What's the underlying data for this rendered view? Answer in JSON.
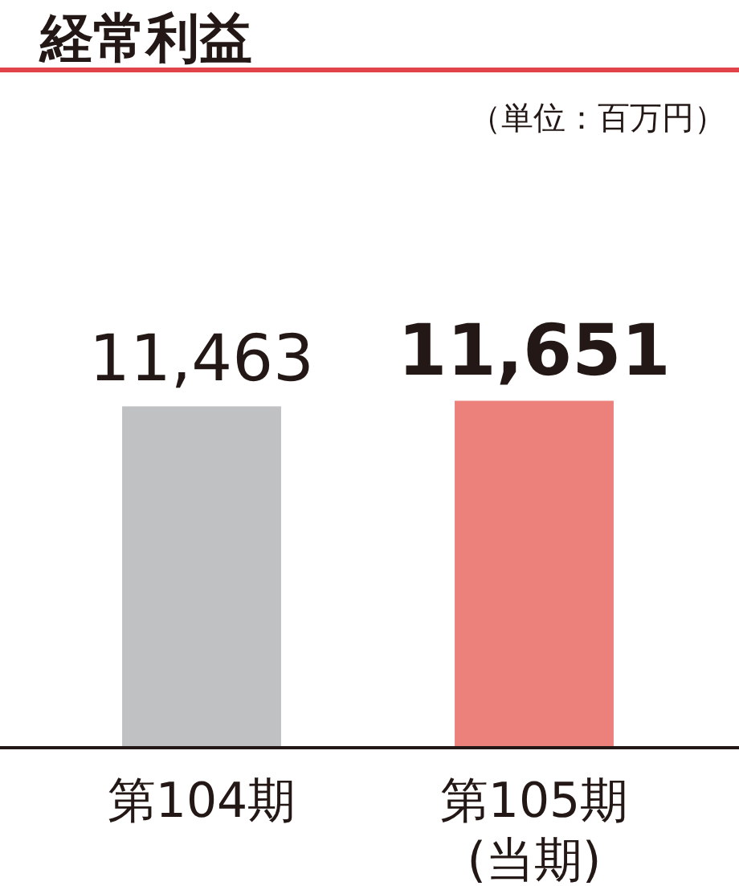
{
  "chart_data": {
    "type": "bar",
    "title": "経常利益",
    "annotations": [
      "（単位：百万円）"
    ],
    "categories": [
      "第104期",
      "第105期\n(当期)"
    ],
    "values": [
      11463,
      11651
    ],
    "colors": [
      "#c0c1c3",
      "#ec817c"
    ],
    "value_labels": [
      "11,463",
      "11,651"
    ]
  }
}
